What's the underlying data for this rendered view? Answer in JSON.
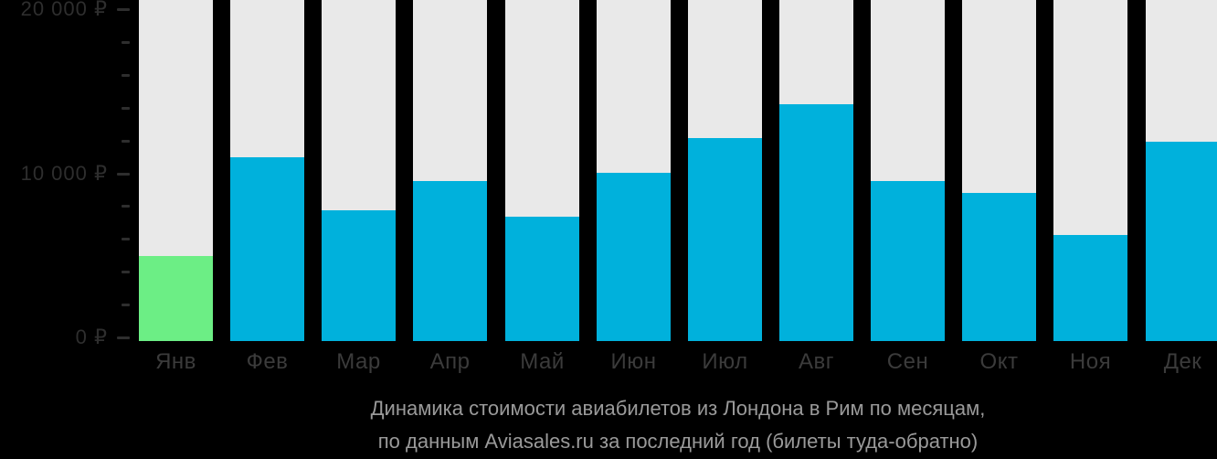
{
  "chart_data": {
    "type": "bar",
    "title": "Динамика стоимости авиабилетов из Лондона в Рим по месяцам,",
    "subtitle": "по данным Aviasales.ru за последний год (билеты туда-обратно)",
    "currency": "₽",
    "categories": [
      "Янв",
      "Фев",
      "Мар",
      "Апр",
      "Май",
      "Июн",
      "Июл",
      "Авг",
      "Сен",
      "Окт",
      "Ноя",
      "Дек"
    ],
    "values": [
      4950,
      11000,
      7750,
      9550,
      7350,
      10050,
      12150,
      14200,
      9550,
      8800,
      6250,
      11900
    ],
    "highlight_index": 0,
    "ylim": [
      0,
      20000
    ],
    "ytick_minor_step": 2000,
    "y_major_ticks": [
      {
        "value": 0,
        "label": "0 ₽"
      },
      {
        "value": 10000,
        "label": "10 000 ₽"
      },
      {
        "value": 20000,
        "label": "20 000 ₽"
      }
    ],
    "legend": "none",
    "grid": "off",
    "colors": {
      "bar": "#00b1dc",
      "bar_highlight": "#6cee85",
      "column_background": "#e9e9e9",
      "page_background": "#000000",
      "axis_tick": "#2e2e2e",
      "axis_label": "#2e2e2e",
      "month_label": "#3b3b3b",
      "title_text": "#9a9a9a"
    }
  }
}
